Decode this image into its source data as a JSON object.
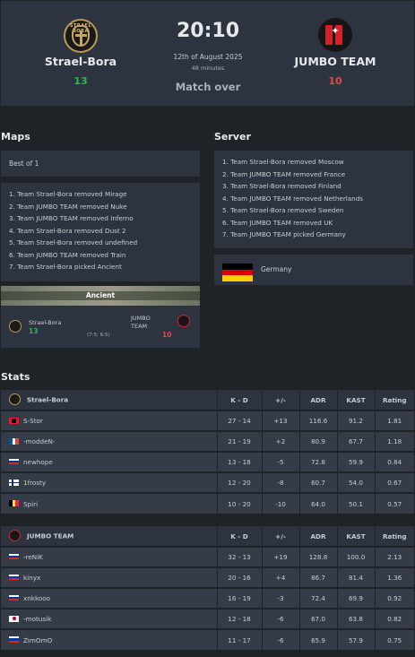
{
  "match": {
    "team1": {
      "name": "Strael-Bora",
      "score": "13",
      "logo_text": "STRAEL BORA"
    },
    "team2": {
      "name": "JUMBO TEAM",
      "score": "10"
    },
    "time": "20:10",
    "date": "12th of August 2025",
    "duration": "48 minutes",
    "status": "Match over"
  },
  "maps": {
    "title": "Maps",
    "format": "Best of 1",
    "veto": [
      "1. Team Strael-Bora removed Mirage",
      "2. Team JUMBO TEAM removed Nuke",
      "3. Team JUMBO TEAM removed Inferno",
      "4. Team Strael-Bora removed Dust 2",
      "5. Team Strael-Bora removed undefined",
      "6. Team JUMBO TEAM removed Train",
      "7. Team Strael-Bora picked Ancient"
    ],
    "result": {
      "map": "Ancient",
      "team1": "Strael-Bora",
      "team1_score": "13",
      "team2": "JUMBO TEAM",
      "team2_score": "10",
      "halves": "(7:5; 6:5)"
    }
  },
  "server": {
    "title": "Server",
    "veto": [
      "1. Team Strael-Bora removed Moscow",
      "2. Team JUMBO TEAM removed France",
      "3. Team Strael-Bora removed Finland",
      "4. Team JUMBO TEAM removed Netherlands",
      "5. Team Strael-Bora removed Sweden",
      "6. Team JUMBO TEAM removed UK",
      "7. Team JUMBO TEAM picked Germany"
    ],
    "selected": "Germany"
  },
  "stats": {
    "title": "Stats",
    "columns": {
      "kd": "K - D",
      "pm": "+/-",
      "adr": "ADR",
      "kast": "KAST",
      "rating": "Rating"
    },
    "teams": [
      {
        "name": "Strael-Bora",
        "players": [
          {
            "name": "S-Stor",
            "flag": "albania",
            "kd": "27 - 14",
            "pm": "+13",
            "adr": "116.6",
            "kast": "91.2",
            "rating": "1.81"
          },
          {
            "name": "-moddeN-",
            "flag": "france",
            "kd": "21 - 19",
            "pm": "+2",
            "adr": "80.9",
            "kast": "67.7",
            "rating": "1.18"
          },
          {
            "name": "newhope",
            "flag": "russia",
            "kd": "13 - 18",
            "pm": "-5",
            "adr": "72.8",
            "kast": "59.9",
            "rating": "0.84"
          },
          {
            "name": "1frosty",
            "flag": "finland",
            "kd": "12 - 20",
            "pm": "-8",
            "adr": "60.7",
            "kast": "54.0",
            "rating": "0.67"
          },
          {
            "name": "Spiri",
            "flag": "belgium",
            "kd": "10 - 20",
            "pm": "-10",
            "adr": "64.0",
            "kast": "50.1",
            "rating": "0.57"
          }
        ]
      },
      {
        "name": "JUMBO TEAM",
        "players": [
          {
            "name": "-reNiK",
            "flag": "russia",
            "kd": "32 - 13",
            "pm": "+19",
            "adr": "128.8",
            "kast": "100.0",
            "rating": "2.13"
          },
          {
            "name": "kinyx",
            "flag": "russia",
            "kd": "20 - 16",
            "pm": "+4",
            "adr": "86.7",
            "kast": "81.4",
            "rating": "1.36"
          },
          {
            "name": "xnkkooo",
            "flag": "russia",
            "kd": "16 - 19",
            "pm": "-3",
            "adr": "72.4",
            "kast": "69.9",
            "rating": "0.92"
          },
          {
            "name": "-motusik",
            "flag": "japan",
            "kd": "12 - 18",
            "pm": "-6",
            "adr": "67.0",
            "kast": "63.8",
            "rating": "0.82"
          },
          {
            "name": "ZimOmO",
            "flag": "russia",
            "kd": "11 - 17",
            "pm": "-6",
            "adr": "65.9",
            "kast": "57.9",
            "rating": "0.75"
          }
        ]
      }
    ]
  },
  "colors": {
    "positive": "#31b74f",
    "negative": "#e54848",
    "panel": "#2d3440",
    "background": "#1f2226"
  }
}
